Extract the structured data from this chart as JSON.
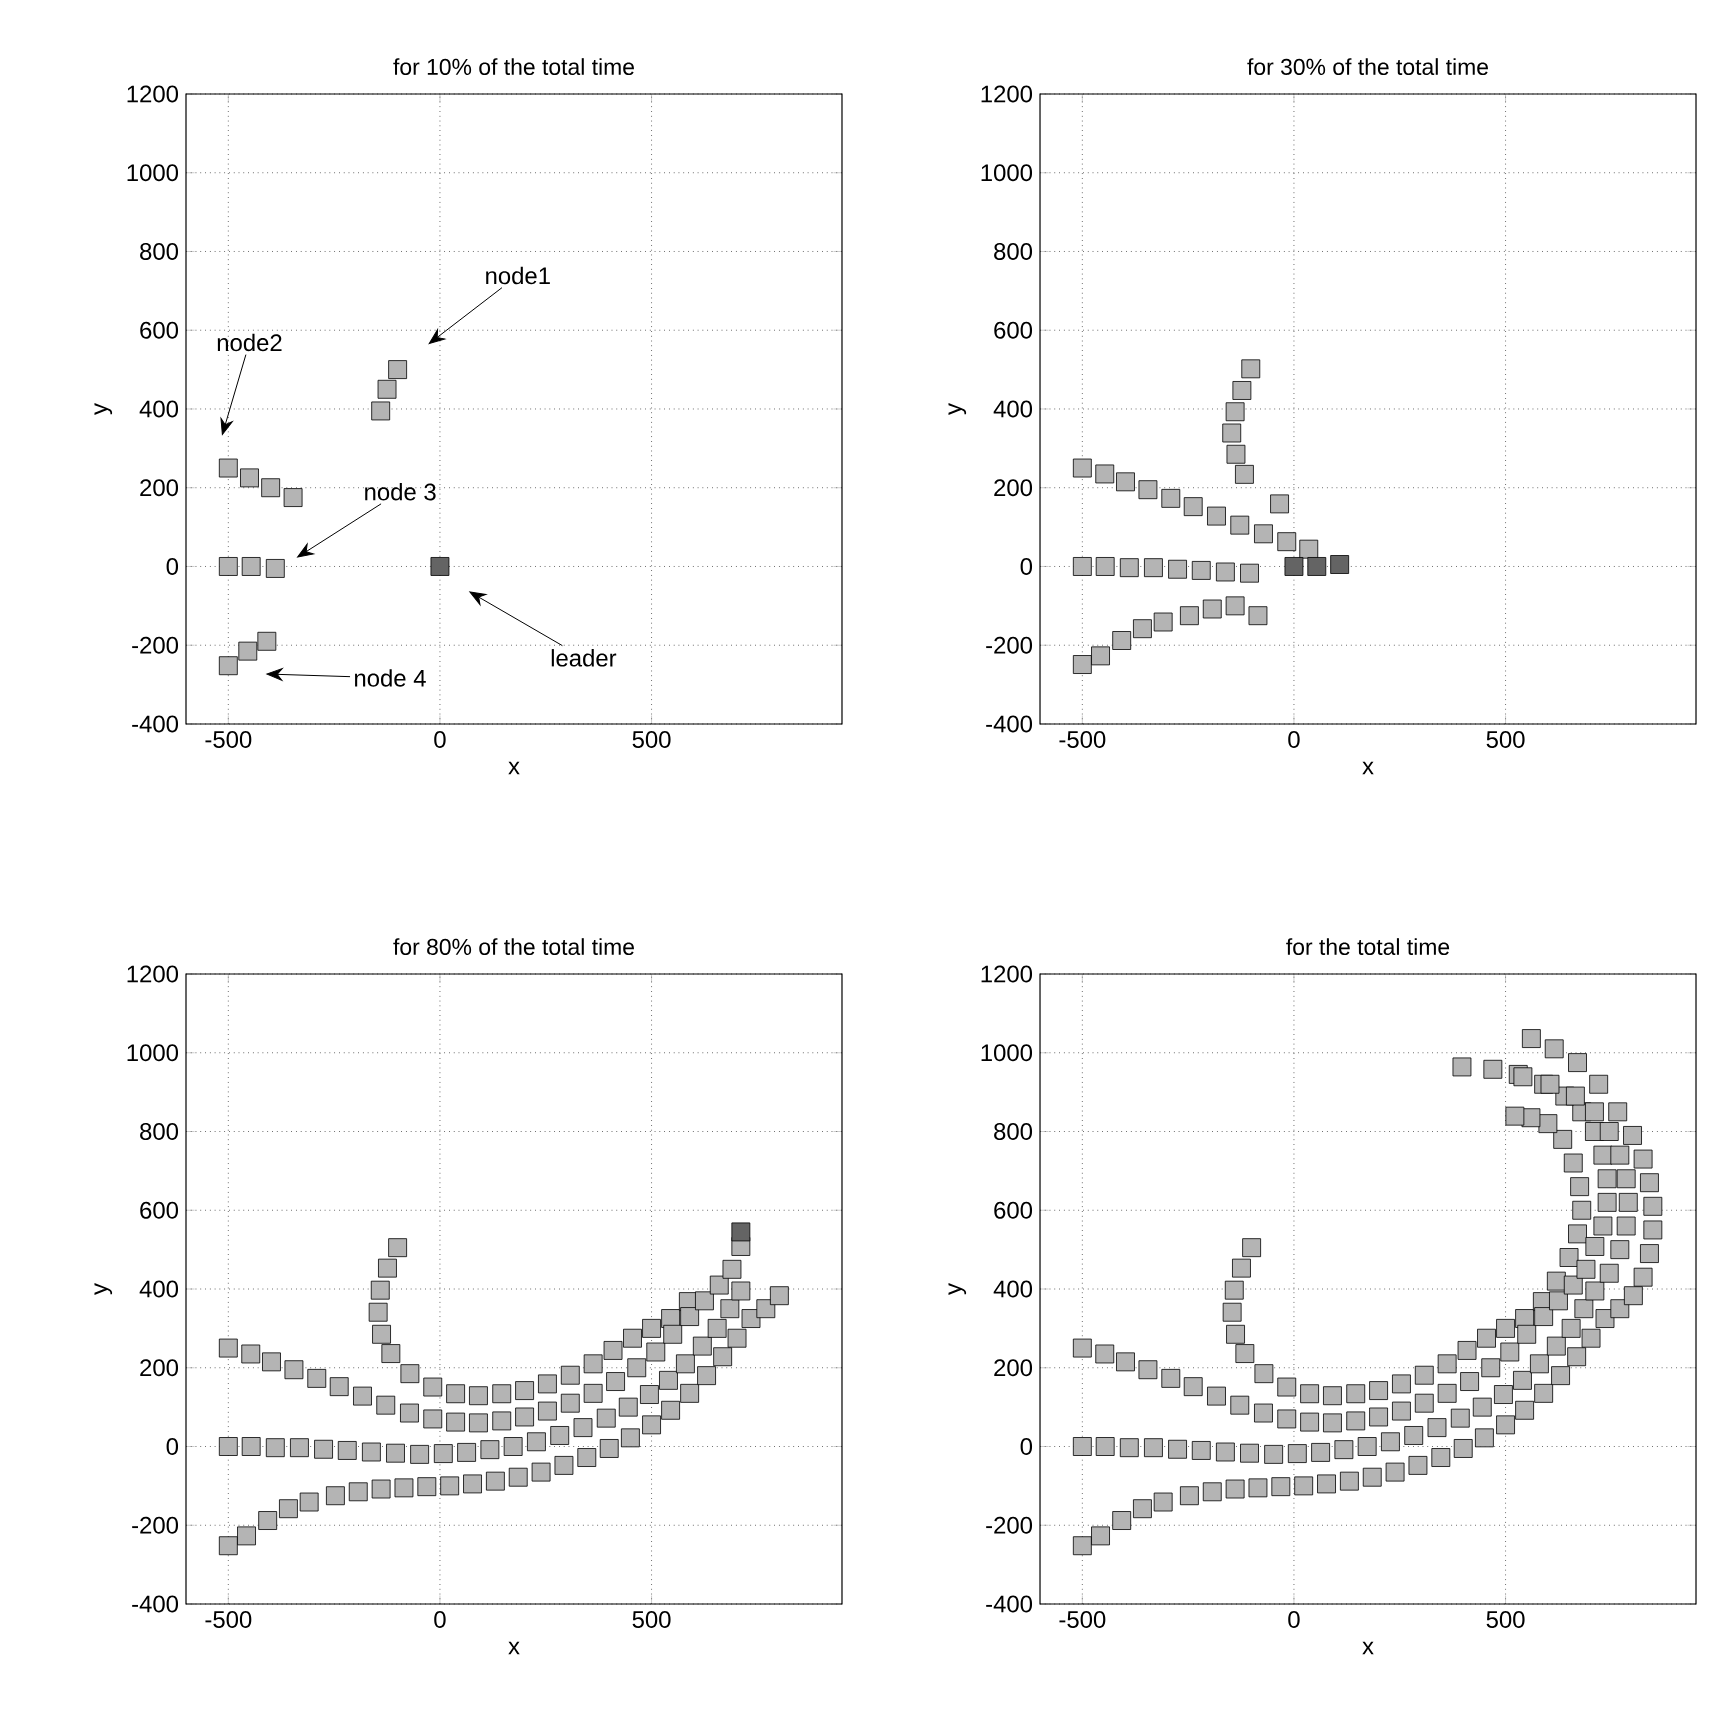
{
  "chart_data": [
    {
      "type": "scatter",
      "title": "for 10% of the total time",
      "xlabel": "x",
      "ylabel": "y",
      "xlim": [
        -600,
        950
      ],
      "ylim": [
        -400,
        1200
      ],
      "xticks": [
        -500,
        0,
        500
      ],
      "yticks": [
        -400,
        -200,
        0,
        200,
        400,
        600,
        800,
        1000,
        1200
      ],
      "grid": true,
      "marker": "square",
      "series": [
        {
          "color": "#b4b4b4",
          "x": [
            -140,
            -125,
            -100
          ],
          "values": [
            395,
            450,
            500
          ]
        },
        {
          "color": "#b4b4b4",
          "x": [
            -500,
            -450,
            -400,
            -347
          ],
          "values": [
            250,
            225,
            200,
            175
          ]
        },
        {
          "color": "#b4b4b4",
          "x": [
            -500,
            -446,
            -389
          ],
          "values": [
            0,
            0,
            -5
          ]
        },
        {
          "color": "#b4b4b4",
          "x": [
            -500,
            -454,
            -409
          ],
          "values": [
            -252,
            -215,
            -190
          ]
        },
        {
          "color": "#646464",
          "x": [
            0
          ],
          "values": [
            0
          ]
        }
      ],
      "annotations": [
        "node1",
        "node2",
        "node 3",
        "node 4",
        "leader"
      ]
    },
    {
      "type": "scatter",
      "title": "for 30% of the total time",
      "xlabel": "x",
      "ylabel": "y",
      "xlim": [
        -600,
        950
      ],
      "ylim": [
        -400,
        1200
      ],
      "xticks": [
        -500,
        0,
        500
      ],
      "yticks": [
        -400,
        -200,
        0,
        200,
        400,
        600,
        800,
        1000,
        1200
      ],
      "grid": true,
      "marker": "square",
      "series": [
        {
          "color": "#b4b4b4",
          "x": [
            -102,
            -123,
            -139,
            -147,
            -137,
            -117,
            -34
          ],
          "values": [
            502,
            447,
            393,
            339,
            285,
            234,
            159
          ]
        },
        {
          "color": "#b4b4b4",
          "x": [
            -500,
            -447,
            -398,
            -345,
            -291,
            -238,
            -183,
            -128,
            -72,
            -17,
            35
          ],
          "values": [
            250,
            235,
            215,
            195,
            173,
            152,
            128,
            105,
            83,
            63,
            44
          ]
        },
        {
          "color": "#b4b4b4",
          "x": [
            -500,
            -446,
            -389,
            -332,
            -275,
            -219,
            -162,
            -105
          ],
          "values": [
            0,
            0,
            -3,
            -3,
            -7,
            -10,
            -14,
            -17
          ]
        },
        {
          "color": "#b4b4b4",
          "x": [
            -500,
            -457,
            -407,
            -358,
            -309,
            -247,
            -193,
            -139,
            -85
          ],
          "values": [
            -249,
            -227,
            -188,
            -158,
            -141,
            -125,
            -108,
            -100,
            -125
          ]
        },
        {
          "color": "#646464",
          "x": [
            0,
            54,
            108
          ],
          "values": [
            0,
            0,
            5
          ]
        }
      ]
    },
    {
      "type": "scatter",
      "title": "for 80% of the total time",
      "xlabel": "x",
      "ylabel": "y",
      "xlim": [
        -600,
        950
      ],
      "ylim": [
        -400,
        1200
      ],
      "xticks": [
        -500,
        0,
        500
      ],
      "yticks": [
        -400,
        -200,
        0,
        200,
        400,
        600,
        800,
        1000,
        1200
      ],
      "grid": true,
      "marker": "square",
      "series": [
        {
          "color": "#b4b4b4",
          "x": [
            -100,
            -124,
            -141,
            -146,
            -138,
            -116,
            -71,
            -17,
            37,
            91,
            146,
            200,
            254,
            308,
            362,
            409,
            455,
            500,
            545,
            587
          ],
          "values": [
            505,
            453,
            397,
            341,
            285,
            236,
            185,
            151,
            134,
            129,
            134,
            142,
            159,
            181,
            210,
            244,
            275,
            300,
            325,
            368
          ]
        },
        {
          "color": "#b4b4b4",
          "x": [
            -500,
            -447,
            -398,
            -345,
            -291,
            -238,
            -183,
            -128,
            -72,
            -17,
            37,
            91,
            146,
            200,
            254,
            308,
            362,
            415,
            465,
            510,
            550,
            590,
            625,
            660,
            690,
            711
          ],
          "values": [
            250,
            235,
            215,
            195,
            173,
            152,
            128,
            105,
            85,
            70,
            62,
            60,
            65,
            75,
            90,
            110,
            135,
            165,
            200,
            240,
            285,
            330,
            370,
            410,
            450,
            508
          ]
        },
        {
          "color": "#b4b4b4",
          "x": [
            -500,
            -446,
            -389,
            -332,
            -275,
            -219,
            -162,
            -105,
            -48,
            8,
            63,
            118,
            173,
            228,
            283,
            338,
            393,
            445,
            495,
            540,
            580,
            620,
            655,
            685,
            711
          ],
          "values": [
            0,
            0,
            -3,
            -3,
            -7,
            -10,
            -14,
            -17,
            -20,
            -18,
            -15,
            -8,
            0,
            12,
            28,
            48,
            72,
            100,
            132,
            168,
            210,
            255,
            300,
            350,
            395
          ]
        },
        {
          "color": "#b4b4b4",
          "x": [
            -500,
            -457,
            -407,
            -358,
            -309,
            -247,
            -193,
            -139,
            -85,
            -31,
            23,
            77,
            131,
            185,
            239,
            293,
            347,
            400,
            450,
            500,
            545,
            590,
            630,
            668,
            702,
            735,
            770,
            802
          ],
          "values": [
            -252,
            -227,
            -188,
            -158,
            -141,
            -125,
            -115,
            -108,
            -105,
            -102,
            -100,
            -95,
            -88,
            -78,
            -65,
            -48,
            -28,
            -5,
            22,
            55,
            92,
            135,
            180,
            228,
            275,
            325,
            350,
            383
          ]
        },
        {
          "color": "#646464",
          "x": [
            711
          ],
          "values": [
            545
          ]
        }
      ]
    },
    {
      "type": "scatter",
      "title": "for the total time",
      "xlabel": "x",
      "ylabel": "y",
      "xlim": [
        -600,
        950
      ],
      "ylim": [
        -400,
        1200
      ],
      "xticks": [
        -500,
        0,
        500
      ],
      "yticks": [
        -400,
        -200,
        0,
        200,
        400,
        600,
        800,
        1000,
        1200
      ],
      "grid": true,
      "marker": "square",
      "series": [
        {
          "color": "#b4b4b4",
          "x": [
            -100,
            -124,
            -141,
            -146,
            -138,
            -116,
            -71,
            -17,
            37,
            91,
            146,
            200,
            254,
            308,
            362,
            409,
            455,
            500,
            545,
            587,
            620,
            650,
            670,
            680,
            675,
            660,
            635,
            600,
            560,
            522
          ],
          "values": [
            505,
            453,
            397,
            341,
            285,
            236,
            185,
            151,
            134,
            129,
            134,
            142,
            159,
            181,
            210,
            244,
            275,
            300,
            325,
            368,
            420,
            480,
            540,
            600,
            660,
            720,
            780,
            820,
            835,
            839
          ]
        },
        {
          "color": "#b4b4b4",
          "x": [
            -500,
            -447,
            -398,
            -345,
            -291,
            -238,
            -183,
            -128,
            -72,
            -17,
            37,
            91,
            146,
            200,
            254,
            308,
            362,
            415,
            465,
            510,
            550,
            590,
            625,
            660,
            690,
            711,
            730,
            740,
            740,
            730,
            710,
            680,
            640,
            590,
            530,
            470,
            397
          ],
          "values": [
            250,
            235,
            215,
            195,
            173,
            152,
            128,
            105,
            85,
            70,
            62,
            60,
            65,
            75,
            90,
            110,
            135,
            165,
            200,
            240,
            285,
            330,
            370,
            410,
            450,
            508,
            560,
            620,
            680,
            740,
            800,
            850,
            890,
            920,
            945,
            958,
            964
          ]
        },
        {
          "color": "#b4b4b4",
          "x": [
            -500,
            -446,
            -389,
            -332,
            -275,
            -219,
            -162,
            -105,
            -48,
            8,
            63,
            118,
            173,
            228,
            283,
            338,
            393,
            445,
            495,
            540,
            580,
            620,
            655,
            685,
            711,
            745,
            770,
            785,
            790,
            785,
            770,
            745,
            710,
            665,
            605,
            541
          ],
          "values": [
            0,
            0,
            -3,
            -3,
            -7,
            -10,
            -14,
            -17,
            -20,
            -18,
            -15,
            -8,
            0,
            12,
            28,
            48,
            72,
            100,
            132,
            168,
            210,
            255,
            300,
            350,
            395,
            440,
            500,
            560,
            620,
            680,
            740,
            800,
            850,
            890,
            920,
            939
          ]
        },
        {
          "color": "#b4b4b4",
          "x": [
            -500,
            -457,
            -407,
            -358,
            -309,
            -247,
            -193,
            -139,
            -85,
            -31,
            23,
            77,
            131,
            185,
            239,
            293,
            347,
            400,
            450,
            500,
            545,
            590,
            630,
            668,
            702,
            735,
            770,
            802,
            825,
            840,
            848,
            848,
            840,
            825,
            800,
            765,
            720,
            670,
            615,
            561
          ],
          "values": [
            -252,
            -227,
            -188,
            -158,
            -141,
            -125,
            -115,
            -108,
            -105,
            -102,
            -100,
            -95,
            -88,
            -78,
            -65,
            -48,
            -28,
            -5,
            22,
            55,
            92,
            135,
            180,
            228,
            275,
            325,
            350,
            383,
            430,
            490,
            550,
            610,
            670,
            730,
            790,
            850,
            920,
            975,
            1010,
            1036
          ]
        }
      ]
    }
  ]
}
